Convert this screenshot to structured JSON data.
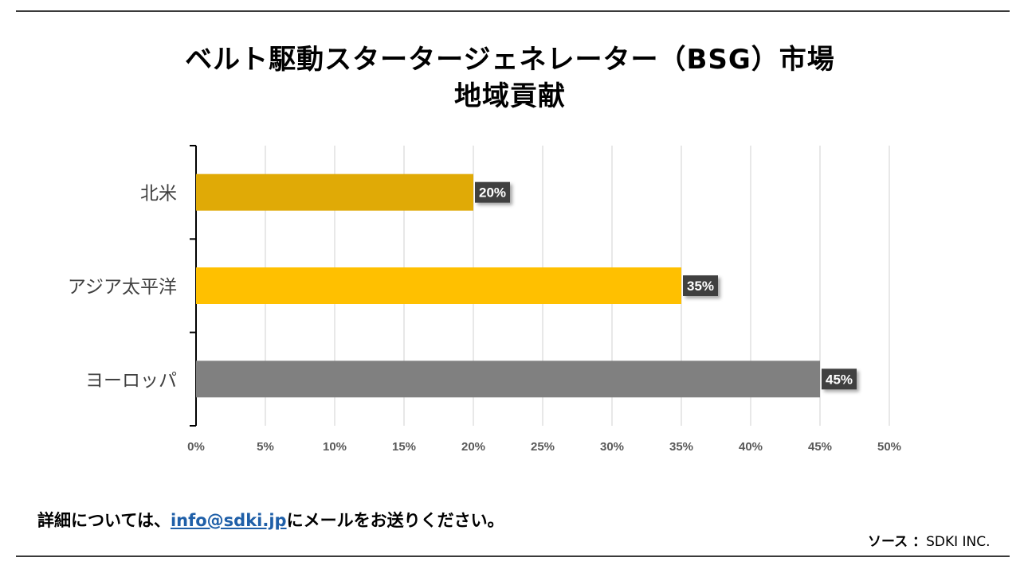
{
  "page": {
    "title_line1": "ベルト駆動スタータージェネレーター（BSG）市場",
    "title_line2": "地域貢献",
    "contact_prefix": "詳細については、",
    "contact_email": "info@sdki.jp",
    "contact_suffix": "にメールをお送りください。",
    "source_label": "ソース ：",
    "source_value": "SDKI INC."
  },
  "chart_data": {
    "type": "bar",
    "orientation": "horizontal",
    "title": "ベルト駆動スタータージェネレーター（BSG）市場 地域貢献",
    "categories": [
      "北米",
      "アジア太平洋",
      "ヨーロッパ"
    ],
    "values": [
      20,
      35,
      45
    ],
    "data_labels": [
      "20%",
      "35%",
      "45%"
    ],
    "colors": [
      "#e0aa06",
      "#ffc000",
      "#808080"
    ],
    "xlim": [
      0,
      50
    ],
    "x_ticks": [
      "0%",
      "5%",
      "10%",
      "15%",
      "20%",
      "25%",
      "30%",
      "35%",
      "40%",
      "45%",
      "50%"
    ],
    "grid": true,
    "legend": "none"
  }
}
